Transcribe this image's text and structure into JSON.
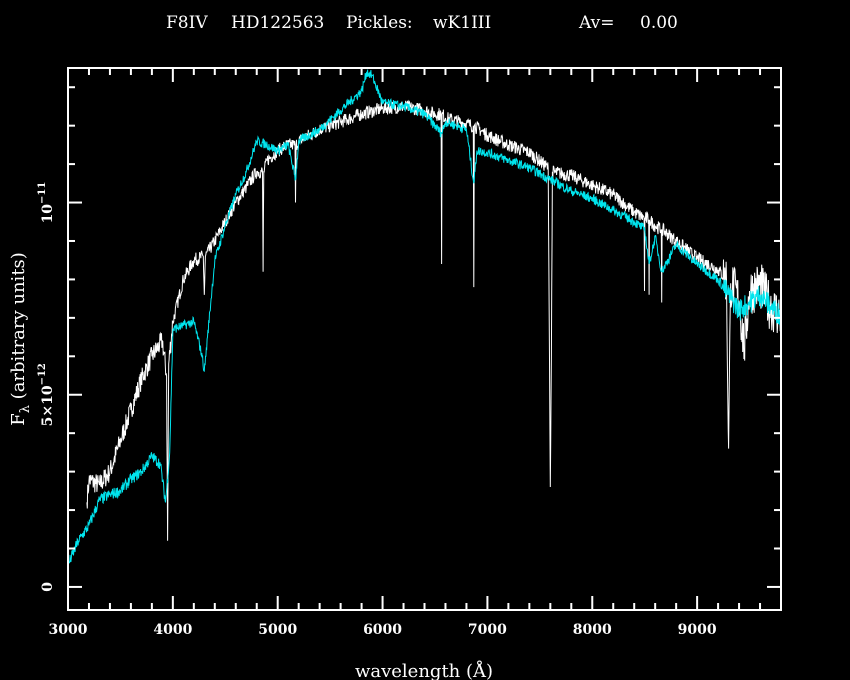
{
  "chart_data": {
    "type": "line",
    "title_parts": {
      "spectral_type": "F8IV",
      "star": "HD122563",
      "template_label": "Pickles:",
      "template": "wK1III",
      "av_label": "Av=",
      "av_value": "0.00"
    },
    "xlabel": "wavelength (Å)",
    "ylabel_main": "F",
    "ylabel_sub": "λ",
    "ylabel_rest": " (arbitrary units)",
    "xlim": [
      3000,
      9800
    ],
    "ylim": [
      -6e-13,
      1.35e-11
    ],
    "x_major_ticks": [
      3000,
      4000,
      5000,
      6000,
      7000,
      8000,
      9000
    ],
    "x_tick_labels": [
      "3000",
      "4000",
      "5000",
      "6000",
      "7000",
      "8000",
      "9000"
    ],
    "x_minor_step": 200,
    "y_major_ticks": [
      0,
      5e-12,
      1e-11
    ],
    "y_tick_labels": [
      {
        "base": "0",
        "exp": ""
      },
      {
        "base": "5×10",
        "exp": "−12"
      },
      {
        "base": "10",
        "exp": "−11"
      }
    ],
    "y_minor_step": 1e-12,
    "grid": false,
    "background": "#000000",
    "series": [
      {
        "name": "HD122563",
        "color": "#ffffff",
        "unit": 1e-12,
        "x": [
          3180,
          3200,
          3300,
          3400,
          3500,
          3600,
          3700,
          3800,
          3900,
          3940,
          3950,
          3960,
          4000,
          4100,
          4200,
          4290,
          4300,
          4310,
          4400,
          4500,
          4600,
          4700,
          4800,
          4855,
          4861,
          4867,
          4900,
          5000,
          5100,
          5165,
          5170,
          5175,
          5200,
          5400,
          5600,
          5800,
          6000,
          6200,
          6400,
          6500,
          6558,
          6563,
          6568,
          6600,
          6800,
          6865,
          6870,
          6875,
          7000,
          7200,
          7400,
          7580,
          7600,
          7610,
          7620,
          7800,
          8000,
          8200,
          8400,
          8494,
          8498,
          8502,
          8538,
          8542,
          8546,
          8600,
          8658,
          8662,
          8666,
          8800,
          9000,
          9200,
          9280,
          9300,
          9320,
          9400,
          9450,
          9500,
          9600,
          9700,
          9800
        ],
        "y": [
          2.2,
          2.78,
          2.65,
          3.0,
          3.8,
          4.6,
          5.4,
          6.0,
          6.4,
          5.5,
          1.2,
          5.8,
          6.9,
          8.0,
          8.5,
          8.6,
          7.6,
          8.6,
          9.0,
          9.5,
          10.0,
          10.4,
          10.8,
          10.8,
          8.2,
          10.8,
          11.1,
          11.35,
          11.5,
          11.5,
          10.0,
          11.5,
          11.6,
          11.9,
          12.1,
          12.3,
          12.45,
          12.5,
          12.4,
          12.3,
          12.3,
          8.4,
          12.3,
          12.2,
          12.05,
          12.0,
          7.8,
          12.0,
          11.75,
          11.5,
          11.3,
          10.9,
          2.6,
          6.0,
          10.8,
          10.7,
          10.45,
          10.2,
          9.75,
          9.6,
          7.7,
          9.6,
          9.55,
          7.6,
          9.55,
          9.4,
          9.3,
          7.4,
          9.3,
          9.0,
          8.55,
          8.25,
          8.0,
          3.6,
          7.9,
          7.45,
          6.2,
          7.7,
          7.85,
          7.3,
          7.05
        ]
      },
      {
        "name": "wK1III",
        "color": "#00e5ee",
        "unit": 1e-12,
        "x": [
          3000,
          3100,
          3200,
          3300,
          3400,
          3500,
          3600,
          3700,
          3800,
          3880,
          3930,
          3970,
          4000,
          4100,
          4200,
          4280,
          4300,
          4330,
          4400,
          4500,
          4600,
          4700,
          4800,
          4900,
          5000,
          5100,
          5170,
          5200,
          5400,
          5600,
          5800,
          5850,
          5900,
          6000,
          6200,
          6400,
          6563,
          6600,
          6800,
          6870,
          6900,
          7000,
          7200,
          7400,
          7600,
          7800,
          8000,
          8200,
          8400,
          8500,
          8542,
          8600,
          8662,
          8800,
          9000,
          9200,
          9300,
          9400,
          9500,
          9600,
          9700,
          9800
        ],
        "y": [
          0.57,
          1.2,
          1.6,
          2.26,
          2.4,
          2.5,
          2.8,
          3.0,
          3.4,
          3.2,
          2.2,
          3.5,
          6.7,
          6.8,
          6.9,
          6.0,
          5.6,
          6.5,
          8.5,
          9.4,
          10.2,
          10.8,
          11.6,
          11.5,
          11.35,
          11.5,
          10.6,
          11.6,
          11.9,
          12.4,
          12.9,
          13.4,
          13.3,
          12.6,
          12.5,
          12.3,
          11.8,
          12.1,
          11.9,
          10.5,
          11.35,
          11.3,
          11.1,
          10.9,
          10.6,
          10.3,
          10.1,
          9.8,
          9.5,
          9.3,
          8.4,
          9.1,
          8.2,
          8.9,
          8.4,
          8.0,
          7.6,
          7.2,
          7.4,
          7.6,
          7.3,
          7.05
        ]
      }
    ]
  }
}
